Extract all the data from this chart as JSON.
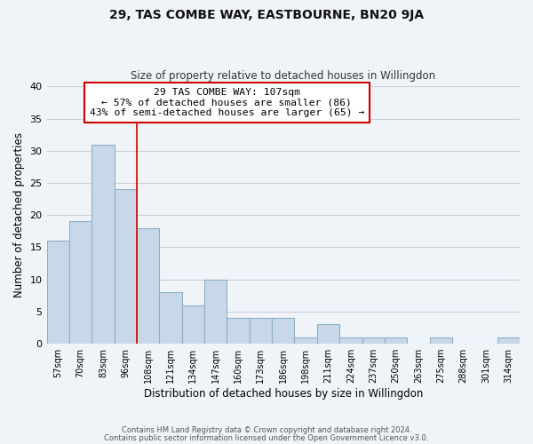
{
  "title": "29, TAS COMBE WAY, EASTBOURNE, BN20 9JA",
  "subtitle": "Size of property relative to detached houses in Willingdon",
  "xlabel": "Distribution of detached houses by size in Willingdon",
  "ylabel": "Number of detached properties",
  "bin_labels": [
    "57sqm",
    "70sqm",
    "83sqm",
    "96sqm",
    "108sqm",
    "121sqm",
    "134sqm",
    "147sqm",
    "160sqm",
    "173sqm",
    "186sqm",
    "198sqm",
    "211sqm",
    "224sqm",
    "237sqm",
    "250sqm",
    "263sqm",
    "275sqm",
    "288sqm",
    "301sqm",
    "314sqm"
  ],
  "bar_heights": [
    16,
    19,
    31,
    24,
    18,
    8,
    6,
    10,
    4,
    4,
    4,
    1,
    3,
    1,
    1,
    1,
    0,
    1,
    0,
    0,
    1
  ],
  "bar_color": "#c8d8e8",
  "bar_edge_color": "#8ab0cc",
  "vline_color": "#cc0000",
  "annotation_line1": "29 TAS COMBE WAY: 107sqm",
  "annotation_line2": "← 57% of detached houses are smaller (86)",
  "annotation_line3": "43% of semi-detached houses are larger (65) →",
  "annotation_box_color": "#ffffff",
  "annotation_box_edge": "#cc0000",
  "ylim": [
    0,
    40
  ],
  "yticks": [
    0,
    5,
    10,
    15,
    20,
    25,
    30,
    35,
    40
  ],
  "footer_line1": "Contains HM Land Registry data © Crown copyright and database right 2024.",
  "footer_line2": "Contains public sector information licensed under the Open Government Licence v3.0.",
  "background_color": "#f0f4f8",
  "grid_color": "#c8d0dc"
}
